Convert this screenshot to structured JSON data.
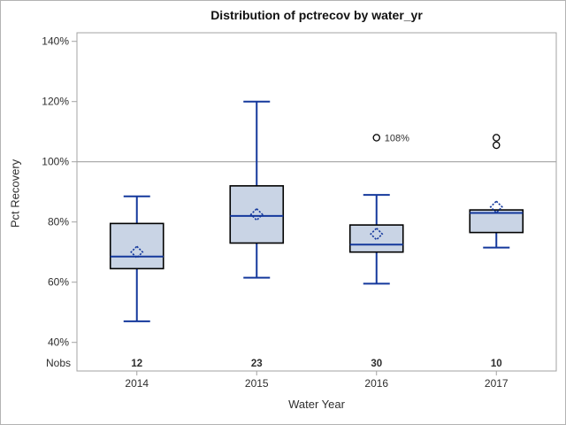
{
  "chart_data": {
    "type": "boxplot",
    "title": "Distribution of pctrecov by water_yr",
    "xlabel": "Water Year",
    "ylabel": "Pct Recovery",
    "nobs_header": "Nobs",
    "categories": [
      "2014",
      "2015",
      "2016",
      "2017"
    ],
    "y_ticks": [
      {
        "value": 140,
        "label": "140%"
      },
      {
        "value": 120,
        "label": "120%"
      },
      {
        "value": 100,
        "label": "100%"
      },
      {
        "value": 80,
        "label": "80%"
      },
      {
        "value": 60,
        "label": "60%"
      },
      {
        "value": 40,
        "label": "40%"
      }
    ],
    "ylim": [
      40,
      140
    ],
    "reference_line": 100,
    "grid": false,
    "series": [
      {
        "category": "2014",
        "nobs": 12,
        "whisker_low": 47,
        "q1": 64.5,
        "median": 68.5,
        "q3": 79.5,
        "whisker_high": 88.5,
        "mean": 70,
        "outliers": []
      },
      {
        "category": "2015",
        "nobs": 23,
        "whisker_low": 61.5,
        "q1": 73,
        "median": 82,
        "q3": 92,
        "whisker_high": 120,
        "mean": 82.5,
        "outliers": []
      },
      {
        "category": "2016",
        "nobs": 30,
        "whisker_low": 59.5,
        "q1": 70,
        "median": 72.5,
        "q3": 79,
        "whisker_high": 89,
        "mean": 76,
        "outliers": [
          {
            "value": 108,
            "label": "108%"
          }
        ]
      },
      {
        "category": "2017",
        "nobs": 10,
        "whisker_low": 71.5,
        "q1": 76.5,
        "median": 83,
        "q3": 84,
        "whisker_high": 84,
        "mean": 85,
        "outliers": [
          {
            "value": 108,
            "label": ""
          },
          {
            "value": 105.5,
            "label": ""
          }
        ]
      }
    ],
    "colors": {
      "box_fill": "#c9d4e5",
      "box_border": "#000000",
      "whisker_line": "#14389c",
      "median_line": "#14389c",
      "mean_marker": "#14389c",
      "outlier_marker": "#000000",
      "reference_line": "#a3a3a3",
      "frame": "#a3a3a3",
      "text": "#2e2e2e"
    }
  }
}
